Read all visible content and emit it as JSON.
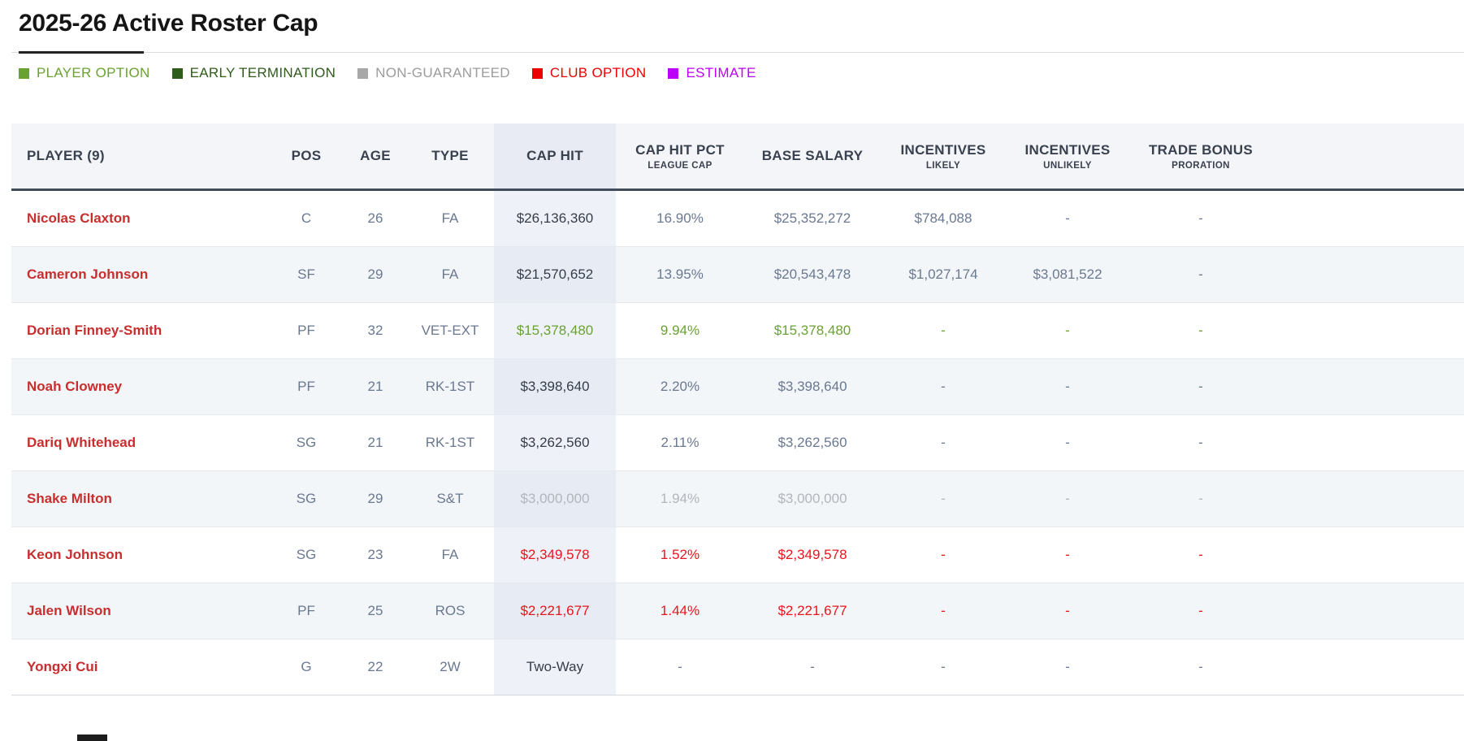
{
  "page": {
    "title": "2025-26 Active Roster Cap"
  },
  "legend": {
    "items": [
      {
        "name": "player-option",
        "label": "PLAYER OPTION",
        "color": "#69a233",
        "text_color": "#69a233"
      },
      {
        "name": "early-termination",
        "label": "EARLY TERMINATION",
        "color": "#2f5c1a",
        "text_color": "#2f5c1a"
      },
      {
        "name": "non-guaranteed",
        "label": "NON-GUARANTEED",
        "color": "#a8a8a8",
        "text_color": "#9c9c9c"
      },
      {
        "name": "club-option",
        "label": "CLUB OPTION",
        "color": "#ed0000",
        "text_color": "#ed0000"
      },
      {
        "name": "estimate",
        "label": "ESTIMATE",
        "color": "#bd00f7",
        "text_color": "#bd00f7"
      }
    ]
  },
  "table": {
    "columns": [
      {
        "label": "PLAYER (9)",
        "sublabel": ""
      },
      {
        "label": "POS",
        "sublabel": ""
      },
      {
        "label": "AGE",
        "sublabel": ""
      },
      {
        "label": "TYPE",
        "sublabel": ""
      },
      {
        "label": "CAP HIT",
        "sublabel": ""
      },
      {
        "label": "CAP HIT PCT",
        "sublabel": "LEAGUE CAP"
      },
      {
        "label": "BASE SALARY",
        "sublabel": ""
      },
      {
        "label": "INCENTIVES",
        "sublabel": "LIKELY"
      },
      {
        "label": "INCENTIVES",
        "sublabel": "UNLIKELY"
      },
      {
        "label": "TRADE BONUS",
        "sublabel": "PRORATION"
      }
    ],
    "rows": [
      {
        "player": "Nicolas Claxton",
        "pos": "C",
        "age": "26",
        "type": "FA",
        "cap_hit": "$26,136,360",
        "cap_hit_pct": "16.90%",
        "base_salary": "$25,352,272",
        "incentives_likely": "$784,088",
        "incentives_unlikely": "-",
        "trade_bonus": "-",
        "highlight": "none"
      },
      {
        "player": "Cameron Johnson",
        "pos": "SF",
        "age": "29",
        "type": "FA",
        "cap_hit": "$21,570,652",
        "cap_hit_pct": "13.95%",
        "base_salary": "$20,543,478",
        "incentives_likely": "$1,027,174",
        "incentives_unlikely": "$3,081,522",
        "trade_bonus": "-",
        "highlight": "none"
      },
      {
        "player": "Dorian Finney-Smith",
        "pos": "PF",
        "age": "32",
        "type": "VET-EXT",
        "cap_hit": "$15,378,480",
        "cap_hit_pct": "9.94%",
        "base_salary": "$15,378,480",
        "incentives_likely": "-",
        "incentives_unlikely": "-",
        "trade_bonus": "-",
        "highlight": "player-option"
      },
      {
        "player": "Noah Clowney",
        "pos": "PF",
        "age": "21",
        "type": "RK-1ST",
        "cap_hit": "$3,398,640",
        "cap_hit_pct": "2.20%",
        "base_salary": "$3,398,640",
        "incentives_likely": "-",
        "incentives_unlikely": "-",
        "trade_bonus": "-",
        "highlight": "none"
      },
      {
        "player": "Dariq Whitehead",
        "pos": "SG",
        "age": "21",
        "type": "RK-1ST",
        "cap_hit": "$3,262,560",
        "cap_hit_pct": "2.11%",
        "base_salary": "$3,262,560",
        "incentives_likely": "-",
        "incentives_unlikely": "-",
        "trade_bonus": "-",
        "highlight": "none"
      },
      {
        "player": "Shake Milton",
        "pos": "SG",
        "age": "29",
        "type": "S&T",
        "cap_hit": "$3,000,000",
        "cap_hit_pct": "1.94%",
        "base_salary": "$3,000,000",
        "incentives_likely": "-",
        "incentives_unlikely": "-",
        "trade_bonus": "-",
        "highlight": "non-guaranteed"
      },
      {
        "player": "Keon Johnson",
        "pos": "SG",
        "age": "23",
        "type": "FA",
        "cap_hit": "$2,349,578",
        "cap_hit_pct": "1.52%",
        "base_salary": "$2,349,578",
        "incentives_likely": "-",
        "incentives_unlikely": "-",
        "trade_bonus": "-",
        "highlight": "club-option"
      },
      {
        "player": "Jalen Wilson",
        "pos": "PF",
        "age": "25",
        "type": "ROS",
        "cap_hit": "$2,221,677",
        "cap_hit_pct": "1.44%",
        "base_salary": "$2,221,677",
        "incentives_likely": "-",
        "incentives_unlikely": "-",
        "trade_bonus": "-",
        "highlight": "club-option"
      },
      {
        "player": "Yongxi Cui",
        "pos": "G",
        "age": "22",
        "type": "2W",
        "cap_hit": "Two-Way",
        "cap_hit_pct": "-",
        "base_salary": "-",
        "incentives_likely": "-",
        "incentives_unlikely": "-",
        "trade_bonus": "-",
        "highlight": "none"
      }
    ]
  },
  "colors": {
    "accent_dark_rule": "#242424",
    "header_bg": "#f3f5f9",
    "header_cap_bg": "#e8ebf3",
    "header_text": "#39414f",
    "header_border": "#414b5a",
    "stripe_bg": "#f3f6f9",
    "cap_band_bg": "#eef1f7",
    "cap_band_stripe_bg": "#e7ecf4",
    "player_name": "#c62f2e",
    "value_slate": "#6a7890",
    "value_dark": "#363d4a",
    "value_green": "#69a233",
    "value_gray": "#b2b6bc",
    "value_red": "#e9141d"
  }
}
